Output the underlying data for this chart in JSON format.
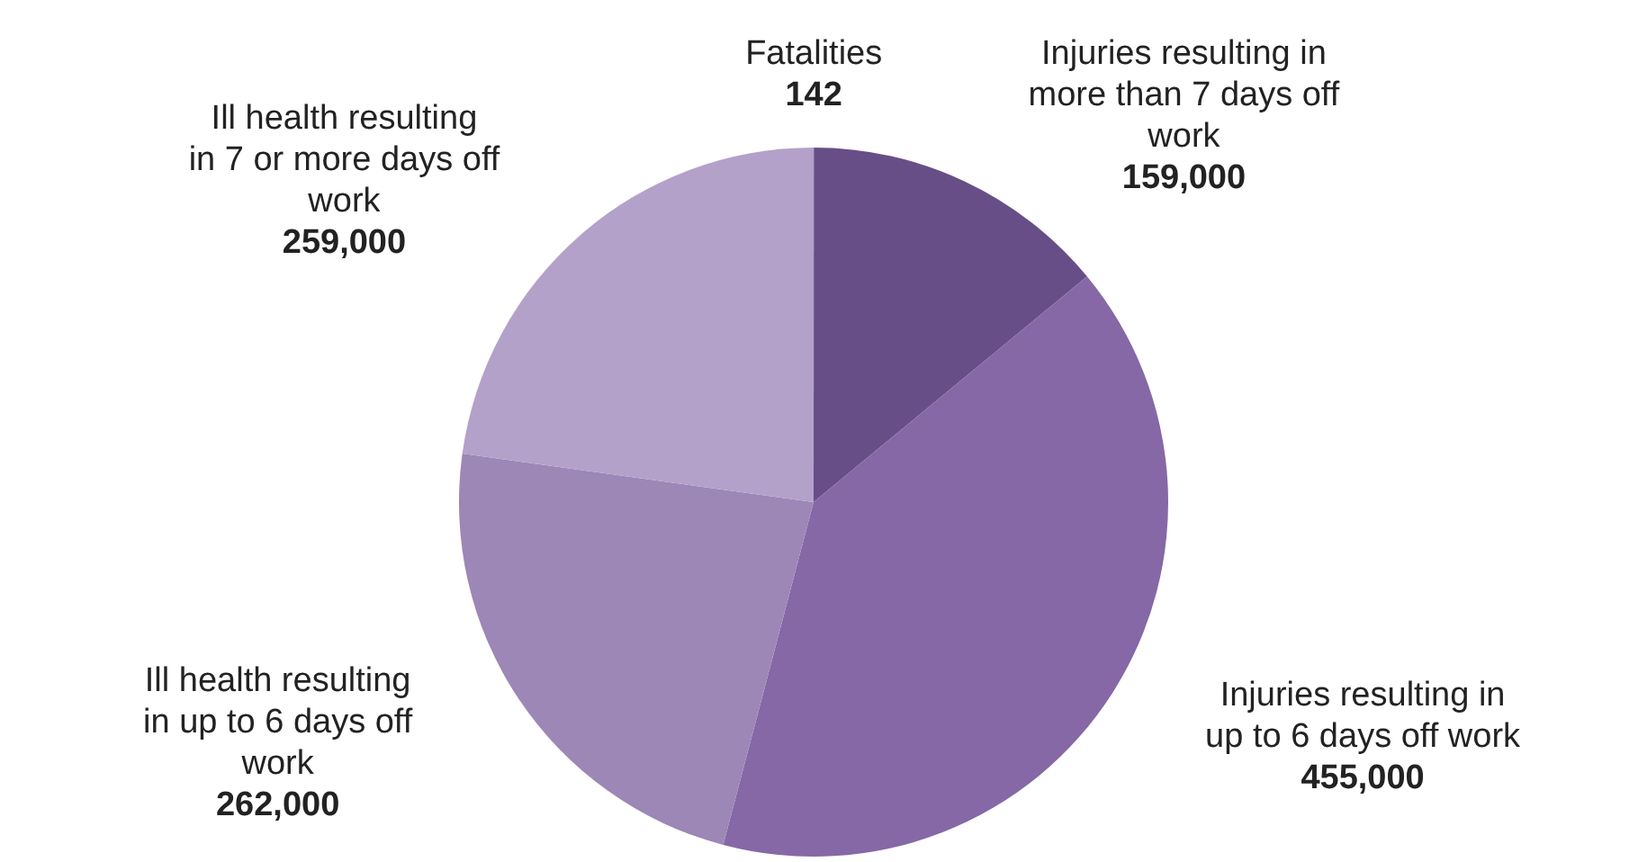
{
  "chart_data": {
    "type": "pie",
    "categories": [
      "Fatalities",
      "Injuries resulting in more than 7 days off work",
      "Injuries resulting in up to 6 days off work",
      "Ill health resulting in up to 6 days off work",
      "Ill health resulting in 7 or more days off work"
    ],
    "values": [
      142,
      159000,
      455000,
      262000,
      259000
    ],
    "value_labels": [
      "142",
      "159,000",
      "455,000",
      "262,000",
      "259,000"
    ],
    "colors": [
      "#5a4478",
      "#684e87",
      "#8568a5",
      "#9c87b7",
      "#b3a1c9"
    ]
  }
}
